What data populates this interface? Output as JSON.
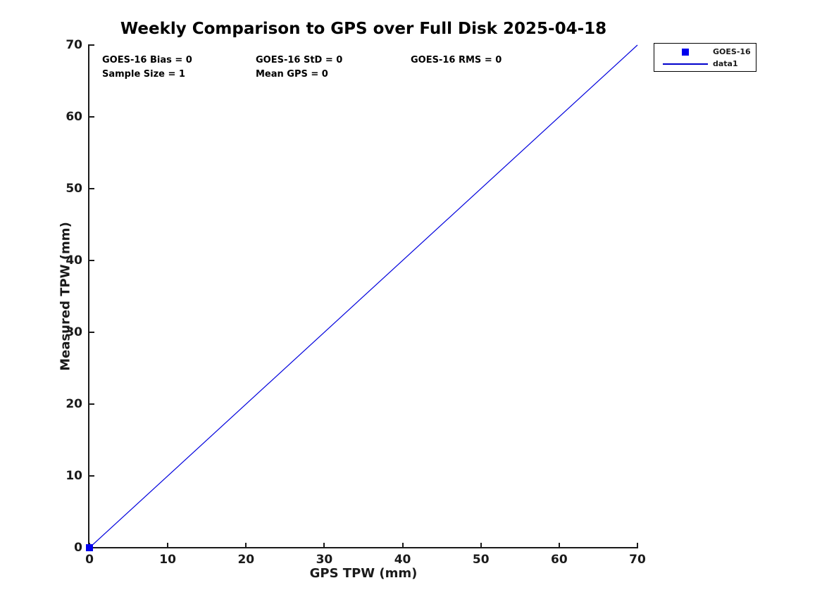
{
  "figure": {
    "title": "Weekly Comparison to GPS over Full Disk 2025-04-18",
    "background": "#ffffff"
  },
  "stats": {
    "bias": "GOES-16 Bias = 0",
    "std": "GOES-16 StD = 0",
    "rms": "GOES-16 RMS = 0",
    "sample_size": "Sample Size = 1",
    "mean_gps": "Mean GPS = 0"
  },
  "legend": {
    "position": "outside-top-right",
    "entries": [
      {
        "label": "GOES-16",
        "sample": "square-marker",
        "color": "#0000EE"
      },
      {
        "label": "data1",
        "sample": "line",
        "color": "#0000CC"
      }
    ]
  },
  "colors": {
    "line_blue": "#0000DD",
    "marker_blue": "#0000EE",
    "axis": "#1a1a1a",
    "text": "#000000"
  },
  "chart_data": {
    "type": "line",
    "title": "Weekly Comparison to GPS over Full Disk 2025-04-18",
    "xlabel": "GPS TPW (mm)",
    "ylabel": "Measured TPW (mm)",
    "xlim": [
      0,
      70
    ],
    "ylim": [
      0,
      70
    ],
    "xticks": [
      0,
      10,
      20,
      30,
      40,
      50,
      60,
      70
    ],
    "yticks": [
      0,
      10,
      20,
      30,
      40,
      50,
      60,
      70
    ],
    "grid": false,
    "legend_position": "outside-top-right",
    "series": [
      {
        "name": "GOES-16",
        "type": "scatter",
        "marker": "square",
        "color": "#0000EE",
        "x": [
          0
        ],
        "y": [
          0
        ]
      },
      {
        "name": "data1",
        "type": "line",
        "color": "#0000DD",
        "x": [
          0,
          70
        ],
        "y": [
          0,
          70
        ]
      }
    ],
    "annotations": [
      {
        "text": "GOES-16 Bias = 0",
        "x": 1.5,
        "y": 68.5
      },
      {
        "text": "GOES-16 StD = 0",
        "x": 21,
        "y": 68.5
      },
      {
        "text": "GOES-16 RMS = 0",
        "x": 41,
        "y": 68.5
      },
      {
        "text": "Sample Size = 1",
        "x": 1.5,
        "y": 66.5
      },
      {
        "text": "Mean GPS = 0",
        "x": 21,
        "y": 66.5
      }
    ]
  }
}
